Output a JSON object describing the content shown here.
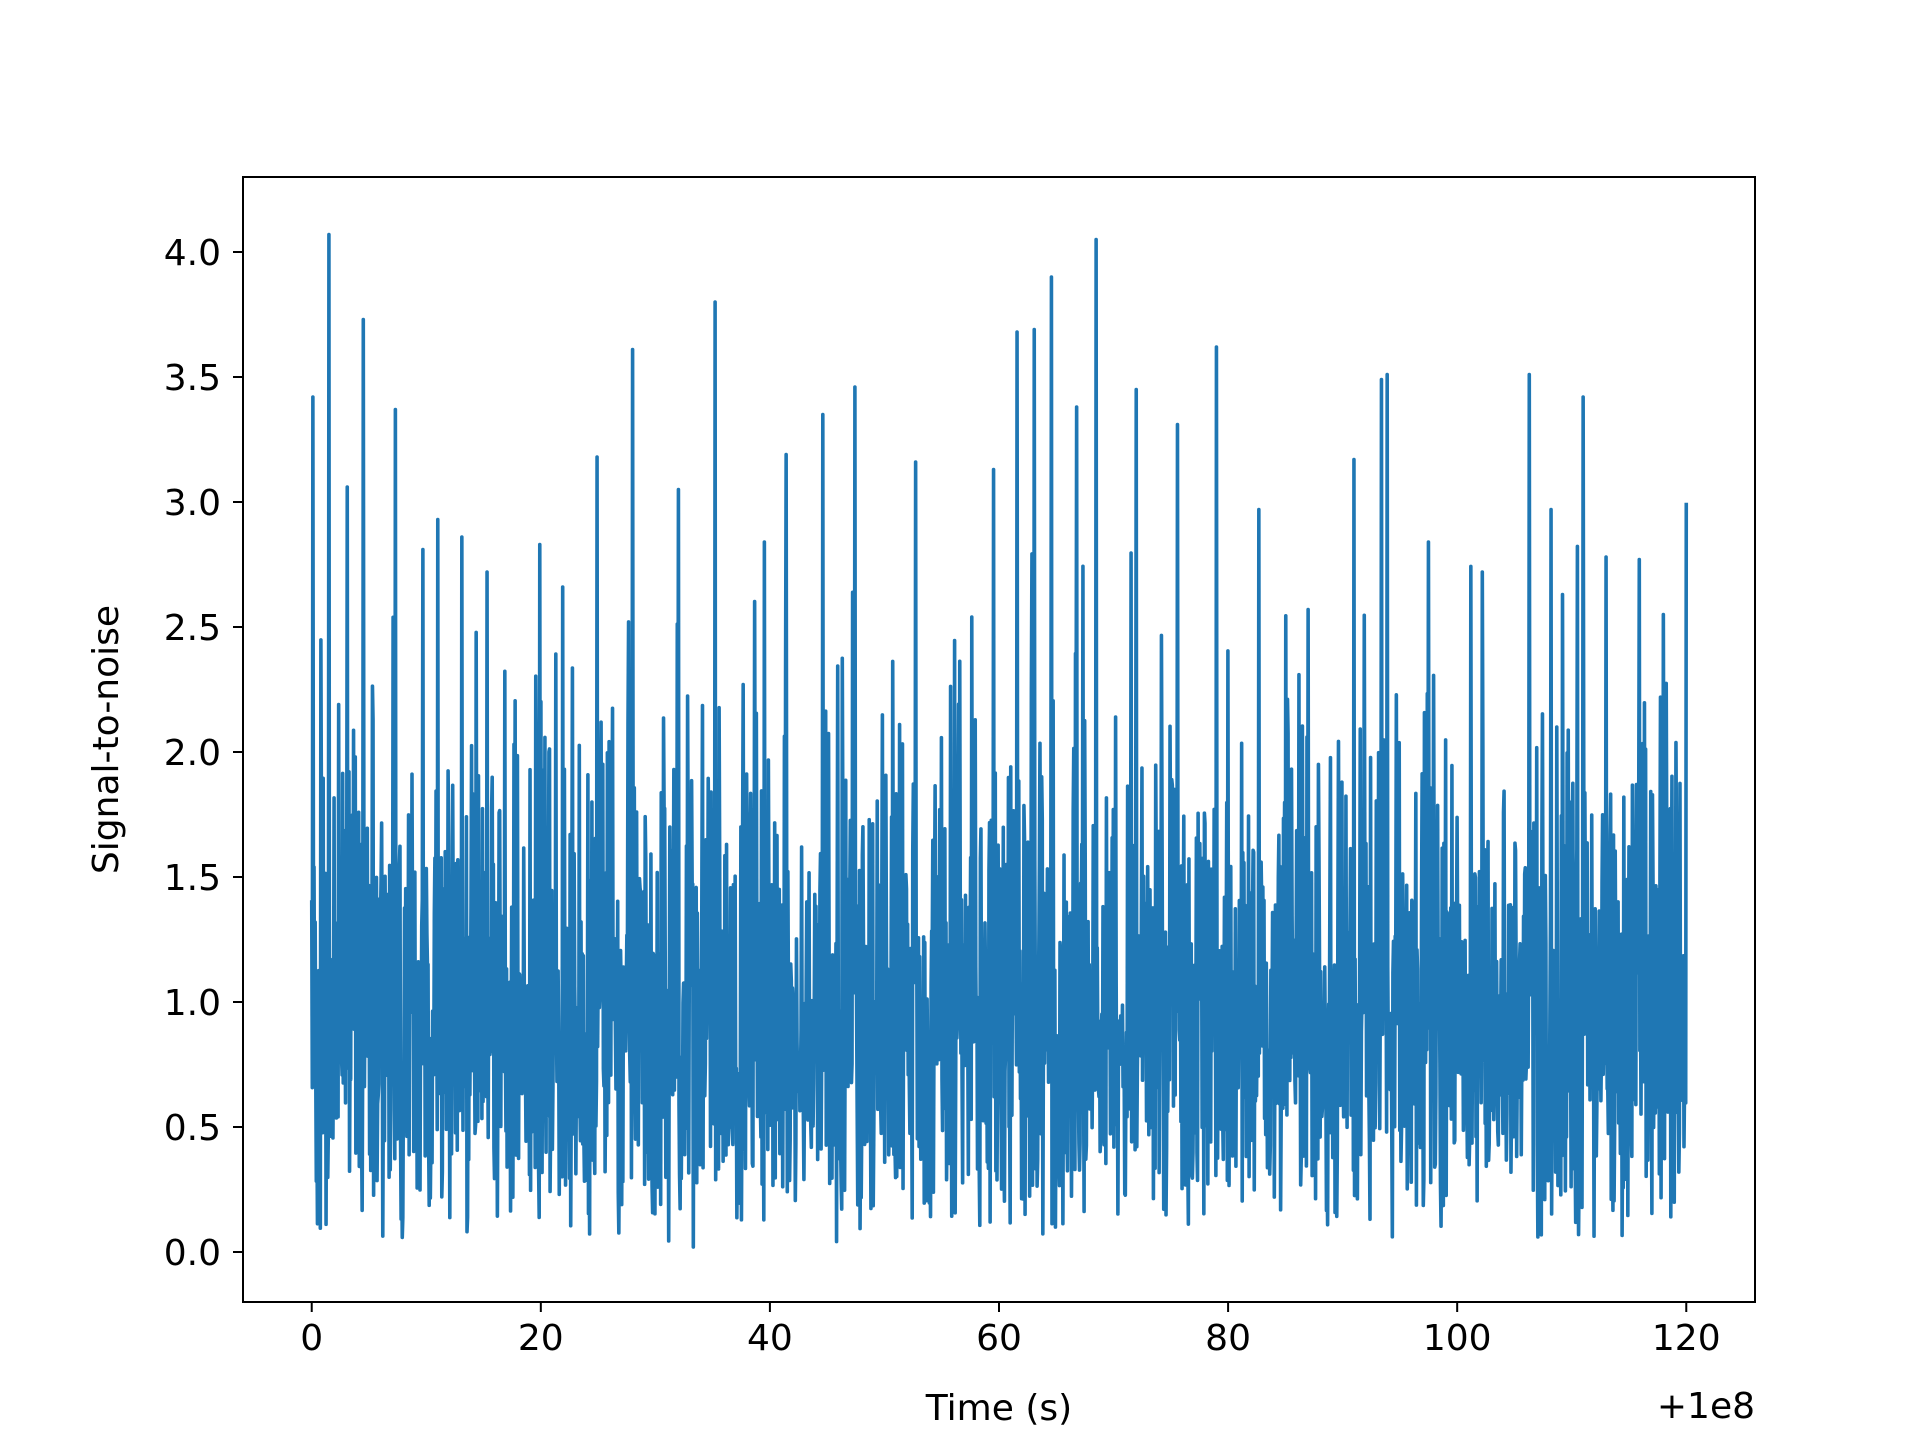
{
  "chart_data": {
    "type": "line",
    "title": "",
    "xlabel": "Time (s)",
    "ylabel": "Signal-to-noise",
    "x_offset_label": "+1e8",
    "x_range": [
      0,
      120
    ],
    "xlim": [
      -6,
      126
    ],
    "ylim": [
      -0.2,
      4.3
    ],
    "x_ticks": [
      0,
      20,
      40,
      60,
      80,
      100,
      120
    ],
    "x_tick_labels": [
      "0",
      "20",
      "40",
      "60",
      "80",
      "100",
      "120"
    ],
    "y_ticks": [
      0.0,
      0.5,
      1.0,
      1.5,
      2.0,
      2.5,
      3.0,
      3.5,
      4.0
    ],
    "y_tick_labels": [
      "0.0",
      "0.5",
      "1.0",
      "1.5",
      "2.0",
      "2.5",
      "3.0",
      "3.5",
      "4.0"
    ],
    "grid": false,
    "legend": "none",
    "series_color": "#1f77b4",
    "series": [
      {
        "name": "",
        "x": [
          0.0,
          0.1,
          1.5,
          3.1,
          4.5,
          7.3,
          9.7,
          11.0,
          13.1,
          15.3,
          19.9,
          21.9,
          24.9,
          28.0,
          32.0,
          35.2,
          39.5,
          41.4,
          44.6,
          47.4,
          52.7,
          57.6,
          59.5,
          61.6,
          63.1,
          64.6,
          66.8,
          68.5,
          72.0,
          75.6,
          79.0,
          82.7,
          87.0,
          91.0,
          93.4,
          93.9,
          97.5,
          102.2,
          106.3,
          108.2,
          111.0,
          113.0,
          115.9,
          118.0,
          120.0
        ],
        "y": [
          1.4,
          3.42,
          4.07,
          3.06,
          3.73,
          3.37,
          2.81,
          2.93,
          2.86,
          2.72,
          2.83,
          2.66,
          3.18,
          3.61,
          3.05,
          3.8,
          2.84,
          3.19,
          3.35,
          3.46,
          3.16,
          2.54,
          3.13,
          3.68,
          3.69,
          3.9,
          3.38,
          4.05,
          3.45,
          3.31,
          3.62,
          2.97,
          2.57,
          3.17,
          3.49,
          3.51,
          2.84,
          2.72,
          3.51,
          2.97,
          3.42,
          2.78,
          2.77,
          2.55,
          2.99
        ],
        "noise_floor_min": 0.01,
        "n_samples_drawn": 2400
      }
    ]
  }
}
